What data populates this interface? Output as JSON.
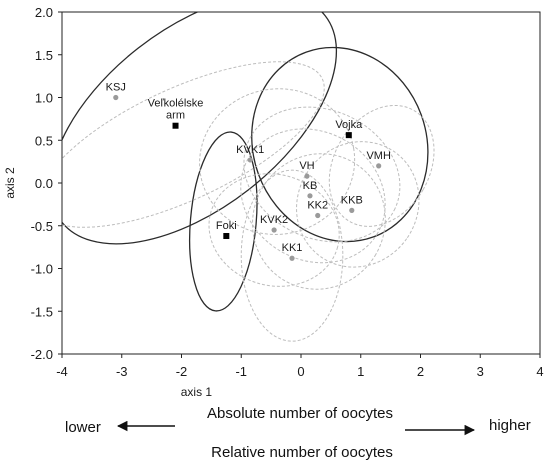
{
  "chart_data": {
    "type": "scatter",
    "xlabel": "axis 1",
    "ylabel": "axis 2",
    "xlim": [
      -4,
      4
    ],
    "ylim": [
      -2,
      2
    ],
    "xticks": [
      -4,
      -3,
      -2,
      -1,
      0,
      1,
      2,
      3,
      4
    ],
    "xtick_labels": [
      "-4",
      "-3",
      "-2",
      "-1",
      "0",
      "1",
      "2",
      "3",
      "4"
    ],
    "yticks": [
      2,
      1.5,
      1,
      0.5,
      0,
      -0.5,
      -1,
      -1.5,
      -2
    ],
    "ytick_labels": [
      "2.0",
      "1.5",
      "1.0",
      "0.5",
      "0.0",
      "-0.5",
      "-1.0",
      "-1.5",
      "-2.0"
    ],
    "grid": false,
    "points": [
      {
        "label": "KSJ",
        "x": -3.1,
        "y": 1.0,
        "group": "grey"
      },
      {
        "label": "Veľkolélske arm",
        "label_lines": [
          "Veľkolélske",
          "arm"
        ],
        "x": -2.1,
        "y": 0.67,
        "group": "black"
      },
      {
        "label": "KVK1",
        "x": -0.85,
        "y": 0.27,
        "group": "grey"
      },
      {
        "label": "Vojka",
        "x": 0.8,
        "y": 0.56,
        "group": "black"
      },
      {
        "label": "VMH",
        "x": 1.3,
        "y": 0.2,
        "group": "grey"
      },
      {
        "label": "VH",
        "x": 0.1,
        "y": 0.08,
        "group": "grey"
      },
      {
        "label": "KB",
        "x": 0.15,
        "y": -0.15,
        "group": "grey"
      },
      {
        "label": "KKB",
        "x": 0.85,
        "y": -0.32,
        "group": "grey"
      },
      {
        "label": "KK2",
        "x": 0.28,
        "y": -0.38,
        "group": "grey"
      },
      {
        "label": "Foki",
        "x": -1.25,
        "y": -0.62,
        "group": "black"
      },
      {
        "label": "KVK2",
        "x": -0.45,
        "y": -0.55,
        "group": "grey"
      },
      {
        "label": "KK1",
        "x": -0.15,
        "y": -0.88,
        "group": "grey"
      }
    ],
    "ellipses": [
      {
        "name": "Veľkolélske arm",
        "cx": -1.8,
        "cy": 0.75,
        "rx": 2.8,
        "ry": 1.05,
        "rotate": -38,
        "style": "black"
      },
      {
        "name": "Vojka",
        "cx": 0.65,
        "cy": 0.45,
        "rx": 1.45,
        "ry": 1.15,
        "rotate": -20,
        "style": "black"
      },
      {
        "name": "Foki",
        "cx": -1.3,
        "cy": -0.45,
        "rx": 0.55,
        "ry": 1.05,
        "rotate": 5,
        "style": "black"
      },
      {
        "name": "KSJ",
        "cx": -2.0,
        "cy": 0.45,
        "rx": 2.6,
        "ry": 0.65,
        "rotate": -25,
        "style": "grey"
      },
      {
        "name": "KVK1",
        "cx": -0.4,
        "cy": 0.25,
        "rx": 1.3,
        "ry": 0.85,
        "rotate": -10,
        "style": "grey"
      },
      {
        "name": "KVK2",
        "cx": -0.45,
        "cy": -0.55,
        "rx": 1.1,
        "ry": 0.65,
        "rotate": 15,
        "style": "grey"
      },
      {
        "name": "KK1",
        "cx": -0.15,
        "cy": -0.85,
        "rx": 0.85,
        "ry": 1.0,
        "rotate": 0,
        "style": "grey"
      },
      {
        "name": "VH",
        "cx": 0.35,
        "cy": 0.1,
        "rx": 1.35,
        "ry": 0.75,
        "rotate": 25,
        "style": "grey"
      },
      {
        "name": "KB",
        "cx": 0.2,
        "cy": -0.15,
        "rx": 1.25,
        "ry": 0.75,
        "rotate": 30,
        "style": "grey"
      },
      {
        "name": "KKB",
        "cx": 0.95,
        "cy": -0.25,
        "rx": 1.0,
        "ry": 0.75,
        "rotate": 35,
        "style": "grey"
      },
      {
        "name": "KK2",
        "cx": 0.3,
        "cy": -0.45,
        "rx": 1.1,
        "ry": 0.8,
        "rotate": 30,
        "style": "grey"
      },
      {
        "name": "VMH",
        "cx": 1.35,
        "cy": 0.2,
        "rx": 0.8,
        "ry": 0.75,
        "rotate": 30,
        "style": "grey"
      }
    ],
    "annotations": {
      "left": "lower",
      "right": "higher",
      "top_caption": "Absolute number of oocytes",
      "bottom_caption": "Relative number of oocytes"
    }
  }
}
